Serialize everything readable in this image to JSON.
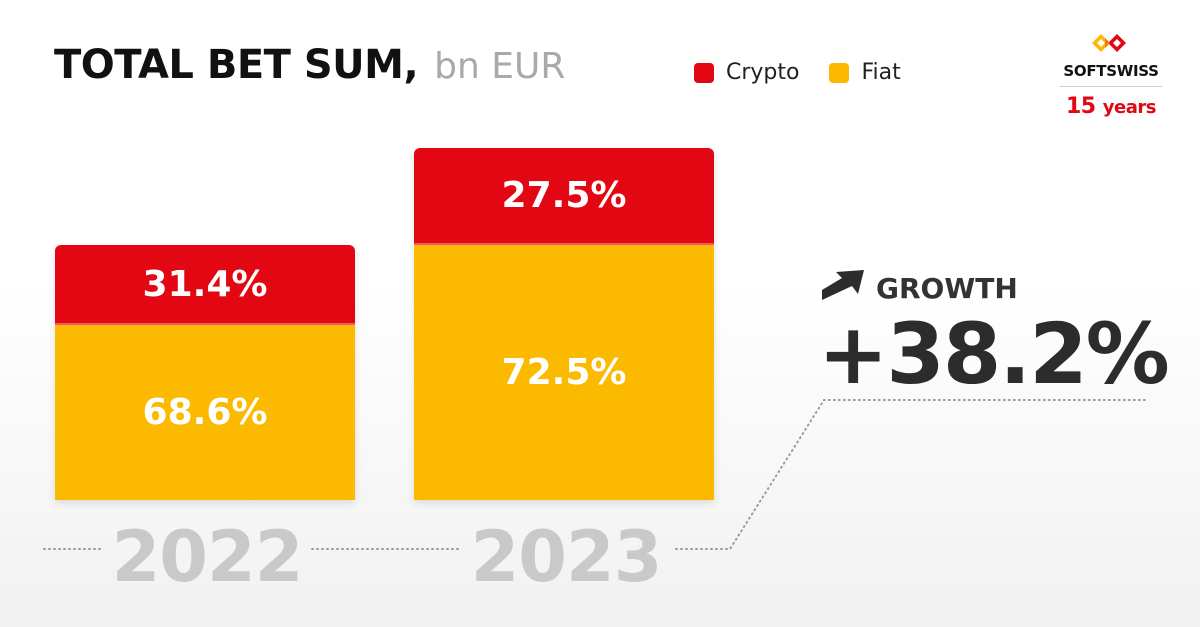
{
  "header": {
    "title": "TOTAL BET SUM,",
    "unit": "bn EUR"
  },
  "legend": [
    {
      "label": "Crypto",
      "color": "#e30613"
    },
    {
      "label": "Fiat",
      "color": "#fbba00"
    }
  ],
  "logo": {
    "name": "SOFTSWISS",
    "years_number": "15",
    "years_word": "years",
    "icon": "softswiss-logo-icon"
  },
  "growth": {
    "label": "GROWTH",
    "value": "+38.2%",
    "icon": "arrow-up-right-icon"
  },
  "chart_data": {
    "type": "bar",
    "stacked": true,
    "title": "TOTAL BET SUM, bn EUR",
    "categories": [
      "2022",
      "2023"
    ],
    "series": [
      {
        "name": "Crypto",
        "values": [
          31.4,
          27.5
        ],
        "labels": [
          "31.4%",
          "27.5%"
        ],
        "color": "#e30613"
      },
      {
        "name": "Fiat",
        "values": [
          68.6,
          72.5
        ],
        "labels": [
          "68.6%",
          "72.5%"
        ],
        "color": "#fbba00"
      }
    ],
    "relative_total": [
      1,
      1.382
    ],
    "growth": "+38.2%",
    "legend_position": "top",
    "grid": false
  }
}
